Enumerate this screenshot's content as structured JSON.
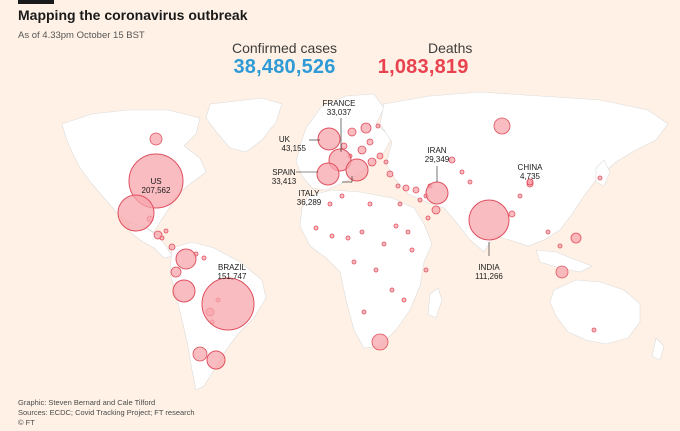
{
  "header": {
    "title": "Mapping the coronavirus outbreak",
    "subtitle": "As of 4.33pm October 15 BST"
  },
  "stats": {
    "confirmed_label": "Confirmed cases",
    "confirmed_value": "38,480,526",
    "deaths_label": "Deaths",
    "deaths_value": "1,083,819"
  },
  "colors": {
    "background": "#fff1e5",
    "land": "#ffffff",
    "bubble_fill": "#f7a6ac",
    "bubble_stroke": "#e0505f",
    "confirmed_accent": "#2e9bd6",
    "deaths_accent": "#e8424f"
  },
  "countries": [
    {
      "name": "US",
      "deaths": "207,562"
    },
    {
      "name": "BRAZIL",
      "deaths": "151,747"
    },
    {
      "name": "INDIA",
      "deaths": "111,266"
    },
    {
      "name": "UK",
      "deaths": "43,155"
    },
    {
      "name": "FRANCE",
      "deaths": "33,037"
    },
    {
      "name": "SPAIN",
      "deaths": "33,413"
    },
    {
      "name": "ITALY",
      "deaths": "36,289"
    },
    {
      "name": "IRAN",
      "deaths": "29,349"
    },
    {
      "name": "CHINA",
      "deaths": "4,735"
    }
  ],
  "footer": {
    "graphic": "Graphic: Steven Bernard and Cale Tilford",
    "sources": "Sources: ECDC; Covid Tracking Project; FT research",
    "copyright": "© FT"
  }
}
